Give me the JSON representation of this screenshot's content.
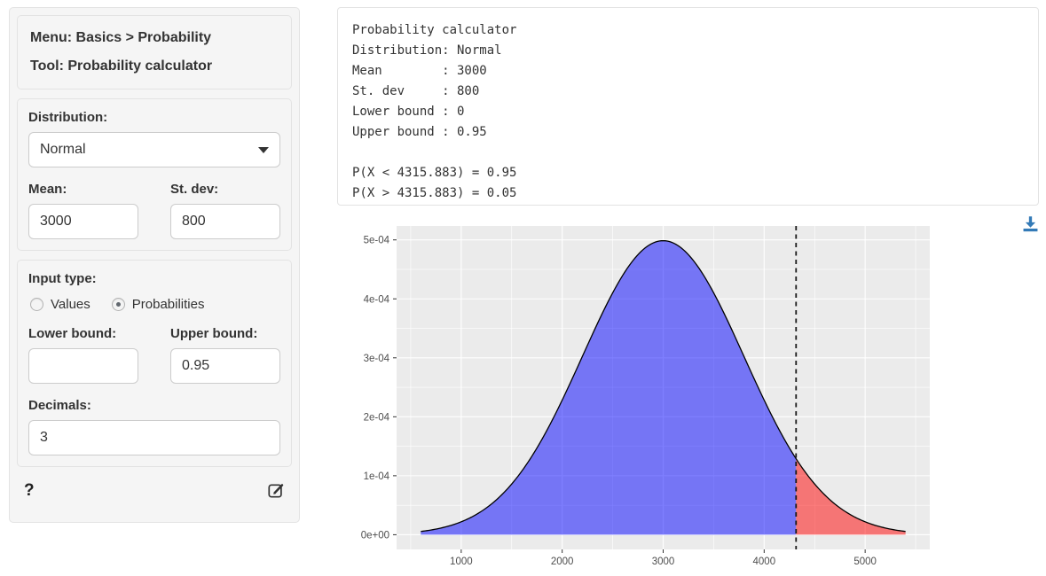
{
  "sidebar": {
    "menu_label": "Menu: Basics > Probability",
    "tool_label": "Tool: Probability calculator",
    "distribution": {
      "label": "Distribution:",
      "selected": "Normal"
    },
    "mean": {
      "label": "Mean:",
      "value": "3000"
    },
    "st_dev": {
      "label": "St. dev:",
      "value": "800"
    },
    "input_type": {
      "label": "Input type:",
      "options": [
        {
          "label": "Values",
          "selected": false
        },
        {
          "label": "Probabilities",
          "selected": true
        }
      ]
    },
    "lower_bound": {
      "label": "Lower bound:",
      "value": "",
      "placeholder": ""
    },
    "upper_bound": {
      "label": "Upper bound:",
      "value": "0.95"
    },
    "decimals": {
      "label": "Decimals:",
      "value": "3"
    },
    "help_label": "?"
  },
  "output": {
    "text": "Probability calculator\nDistribution: Normal\nMean        : 3000\nSt. dev     : 800\nLower bound : 0\nUpper bound : 0.95\n\nP(X < 4315.883) = 0.95\nP(X > 4315.883) = 0.05"
  },
  "icons": {
    "dropdown": "caret-down-icon",
    "edit_report": "pencil-square-icon",
    "download_plot": "download-icon"
  },
  "chart_data": {
    "type": "area",
    "title": "",
    "xlabel": "",
    "ylabel": "",
    "distribution": "normal",
    "mean": 3000,
    "st_dev": 800,
    "curve_x_range": [
      600,
      5400
    ],
    "cutoff_value": 4315.883,
    "region_left_probability": 0.95,
    "region_right_probability": 0.05,
    "x_ticks": [
      1000,
      2000,
      3000,
      4000,
      5000
    ],
    "x_minor_ticks": [
      500,
      1500,
      2500,
      3500,
      4500,
      5500
    ],
    "y_ticks": [
      0,
      0.0001,
      0.0002,
      0.0003,
      0.0004,
      0.0005
    ],
    "y_tick_labels": [
      "0e+00",
      "1e-04",
      "2e-04",
      "3e-04",
      "4e-04",
      "5e-04"
    ],
    "y_minor_ticks": [
      5e-05,
      0.00015,
      0.00025,
      0.00035,
      0.00045
    ],
    "grid": true,
    "legend": "none",
    "colors": {
      "panel_bg": "#EBEBEB",
      "grid": "#FFFFFF",
      "area_left": "#0000FF",
      "area_right": "#FF0000",
      "area_alpha": 0.5,
      "curve": "#000000",
      "cutoff_line": "#1A1A1A",
      "tick_label": "#4D4D4D",
      "accent_link": "#337AB7"
    }
  }
}
